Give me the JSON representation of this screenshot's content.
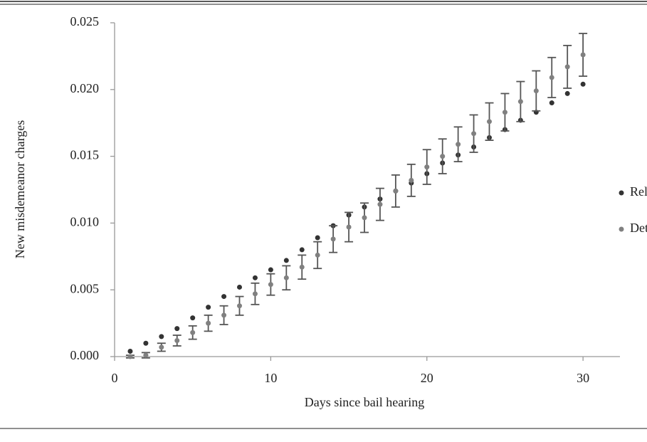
{
  "chart_data": {
    "type": "scatter",
    "xlabel": "Days since bail hearing",
    "ylabel": "New misdemeanor charges",
    "x": [
      1,
      2,
      3,
      4,
      5,
      6,
      7,
      8,
      9,
      10,
      11,
      12,
      13,
      14,
      15,
      16,
      17,
      18,
      19,
      20,
      21,
      22,
      23,
      24,
      25,
      26,
      27,
      28,
      29,
      30
    ],
    "series": [
      {
        "name": "Released",
        "color": "#333333",
        "values": [
          0.0004,
          0.001,
          0.0015,
          0.0021,
          0.0029,
          0.0037,
          0.0045,
          0.0052,
          0.0059,
          0.0065,
          0.0072,
          0.008,
          0.0089,
          0.0098,
          0.0106,
          0.0112,
          0.0118,
          0.0124,
          0.013,
          0.0137,
          0.0145,
          0.0151,
          0.0157,
          0.0164,
          0.017,
          0.0177,
          0.0183,
          0.019,
          0.0197,
          0.0204
        ]
      },
      {
        "name": "Detained",
        "color": "#808080",
        "values": [
          0.0,
          0.0001,
          0.0007,
          0.0012,
          0.0018,
          0.0025,
          0.0031,
          0.0038,
          0.0047,
          0.0054,
          0.0059,
          0.0067,
          0.0076,
          0.0088,
          0.0097,
          0.0104,
          0.0114,
          0.0124,
          0.0132,
          0.0142,
          0.015,
          0.0159,
          0.0167,
          0.0176,
          0.0183,
          0.0191,
          0.0199,
          0.0209,
          0.0217,
          0.0226
        ],
        "errors": [
          0.0001,
          0.0002,
          0.0003,
          0.0004,
          0.0005,
          0.0006,
          0.0007,
          0.0007,
          0.0008,
          0.0008,
          0.0009,
          0.0009,
          0.001,
          0.001,
          0.0011,
          0.0011,
          0.0012,
          0.0012,
          0.0012,
          0.0013,
          0.0013,
          0.0013,
          0.0014,
          0.0014,
          0.0014,
          0.0015,
          0.0015,
          0.0015,
          0.0016,
          0.0016
        ],
        "error_color": "#555555"
      }
    ],
    "xlim": [
      0,
      32
    ],
    "xticks": [
      0,
      10,
      20,
      30
    ],
    "ylim": [
      0,
      0.025
    ],
    "yticks": [
      {
        "value": 0,
        "label": "0.000"
      },
      {
        "value": 0.005,
        "label": "0.005"
      },
      {
        "value": 0.01,
        "label": "0.010"
      },
      {
        "value": 0.015,
        "label": "0.015"
      },
      {
        "value": 0.02,
        "label": "0.020"
      },
      {
        "value": 0.025,
        "label": "0.025"
      }
    ],
    "grid": false,
    "legend": "right"
  }
}
